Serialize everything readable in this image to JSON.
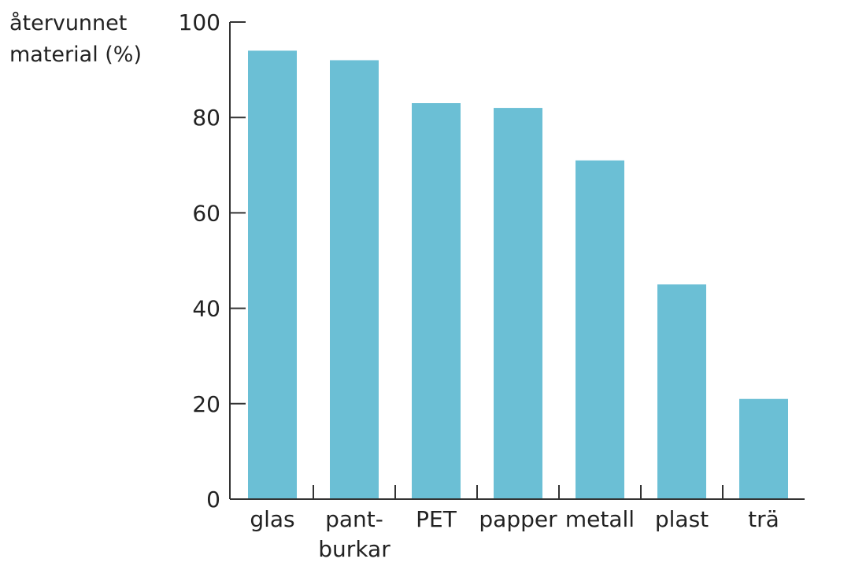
{
  "chart_data": {
    "type": "bar",
    "ylabel_lines": [
      "återvunnet",
      "material (%)"
    ],
    "xlabel": "",
    "categories": [
      "glas",
      "pant-\nburkar",
      "PET",
      "papper",
      "metall",
      "plast",
      "trä"
    ],
    "values": [
      94,
      92,
      83,
      82,
      71,
      45,
      21
    ],
    "ylim": [
      0,
      100
    ],
    "yticks": [
      0,
      20,
      40,
      60,
      80,
      100
    ],
    "grid": false,
    "legend": "none",
    "bar_color": "#6bbfd5",
    "axis_color": "#333333"
  }
}
